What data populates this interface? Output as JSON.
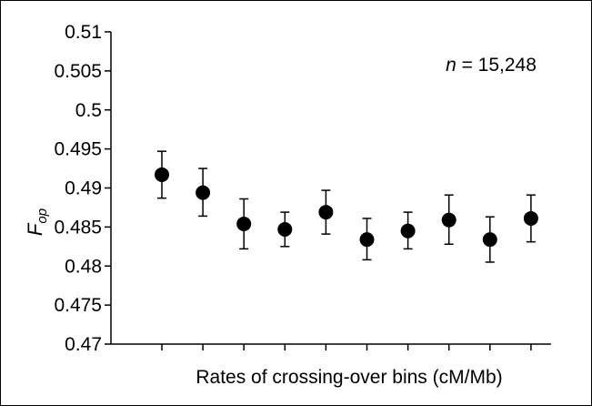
{
  "chart_data": {
    "type": "scatter",
    "title": "",
    "xlabel": "Rates of crossing-over bins (cM/Mb)",
    "ylabel": {
      "main": "F",
      "sub": "op"
    },
    "annotation": {
      "italic": "n",
      "rest": " = 15,248"
    },
    "ylim": [
      0.47,
      0.51
    ],
    "yticks": [
      0.47,
      0.475,
      0.48,
      0.485,
      0.49,
      0.495,
      0.5,
      0.505,
      0.51
    ],
    "ytick_labels": [
      "0.47",
      "0.475",
      "0.48",
      "0.485",
      "0.49",
      "0.495",
      "0.5",
      "0.505",
      "0.51"
    ],
    "x": [
      1,
      2,
      3,
      4,
      5,
      6,
      7,
      8,
      9,
      10
    ],
    "points": [
      {
        "y": 0.4917,
        "lower": 0.4887,
        "upper": 0.4947
      },
      {
        "y": 0.4894,
        "lower": 0.4864,
        "upper": 0.4925
      },
      {
        "y": 0.4854,
        "lower": 0.4822,
        "upper": 0.4886
      },
      {
        "y": 0.4847,
        "lower": 0.4825,
        "upper": 0.4869
      },
      {
        "y": 0.4869,
        "lower": 0.4841,
        "upper": 0.4897
      },
      {
        "y": 0.4834,
        "lower": 0.4808,
        "upper": 0.4861
      },
      {
        "y": 0.4845,
        "lower": 0.4822,
        "upper": 0.4869
      },
      {
        "y": 0.4859,
        "lower": 0.4828,
        "upper": 0.4891
      },
      {
        "y": 0.4834,
        "lower": 0.4805,
        "upper": 0.4863
      },
      {
        "y": 0.4861,
        "lower": 0.4831,
        "upper": 0.4891
      }
    ],
    "grid": false,
    "legend": "none",
    "marker_color": "#000000"
  }
}
